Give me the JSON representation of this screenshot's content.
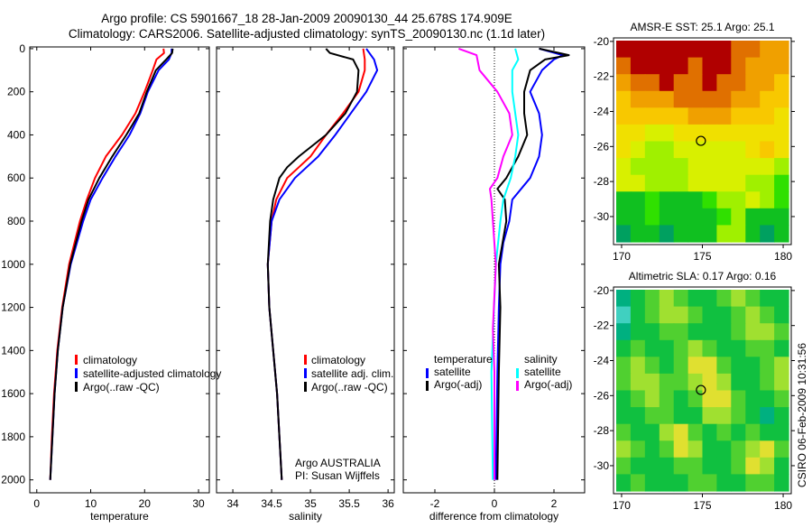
{
  "title_line1": "Argo profile: CS 5901667_18 28-Jan-2009 20090130_44 25.678S 174.909E",
  "title_line2": "Climatology: CARS2006. Satellite-adjusted climatology: synTS_20090130.nc (1.1d later)",
  "side_stamp": "CSIRO 06-Feb-2009 10:31:56",
  "colors": {
    "red": "#ff0000",
    "blue": "#0000ff",
    "black": "#000000",
    "cyan": "#00ffff",
    "magenta": "#ff00ff"
  },
  "chart_data": {
    "type": "line",
    "depth_ticks": [
      0,
      200,
      400,
      600,
      800,
      1000,
      1200,
      1400,
      1600,
      1800,
      2000
    ],
    "ylim": [
      -8,
      2060
    ],
    "panels": [
      {
        "xlabel": "temperature",
        "xlim": [
          -1.3,
          32
        ],
        "xticks": [
          0,
          10,
          20,
          30
        ],
        "legend": [
          "climatology",
          "satellite-adjusted climatology",
          "Argo(..raw -QC)"
        ],
        "series": [
          {
            "name": "climatology",
            "color": "#ff0000",
            "depth": [
              0,
              20,
              50,
              100,
              200,
              300,
              400,
              500,
              600,
              700,
              800,
              1000,
              1200,
              1400,
              1600,
              1800,
              2000
            ],
            "values": [
              23.5,
              23.6,
              22.2,
              21.5,
              20,
              18.3,
              15.8,
              12.8,
              10.8,
              9.3,
              8,
              6,
              4.7,
              3.8,
              3.2,
              2.8,
              2.5
            ]
          },
          {
            "name": "satellite-adjusted climatology",
            "color": "#0000ff",
            "depth": [
              0,
              20,
              50,
              100,
              200,
              300,
              400,
              500,
              600,
              700,
              800,
              1000,
              1200,
              1400,
              1600,
              1800,
              2000
            ],
            "values": [
              25,
              25,
              24.5,
              22.6,
              20.6,
              19.2,
              17.2,
              14.6,
              12.2,
              10,
              8.6,
              6.3,
              4.8,
              3.9,
              3.3,
              2.9,
              2.5
            ]
          },
          {
            "name": "Argo(..raw -QC)",
            "color": "#000000",
            "depth": [
              0,
              20,
              50,
              100,
              200,
              300,
              400,
              500,
              600,
              700,
              800,
              1000,
              1200,
              1400,
              1600,
              1800,
              2000
            ],
            "values": [
              25.2,
              25.1,
              24,
              22.1,
              20.4,
              19,
              16.6,
              14,
              11.6,
              9.6,
              8.3,
              6.2,
              4.8,
              3.9,
              3.3,
              2.9,
              2.5
            ]
          }
        ]
      },
      {
        "xlabel": "salinity",
        "xlim": [
          33.79,
          36.08
        ],
        "xticks": [
          34,
          34.5,
          35,
          35.5,
          36
        ],
        "legend": [
          "climatology",
          "satellite adj. clim.",
          "Argo(..raw -QC)"
        ],
        "annotation": [
          "Argo AUSTRALIA",
          "PI: Susan Wijffels"
        ],
        "series": [
          {
            "name": "climatology",
            "color": "#ff0000",
            "depth": [
              0,
              50,
              100,
              200,
              300,
              400,
              500,
              550,
              600,
              700,
              800,
              1000,
              1200,
              1400,
              1600,
              1800,
              2000
            ],
            "values": [
              35.68,
              35.7,
              35.7,
              35.62,
              35.42,
              35.2,
              35.0,
              34.85,
              34.7,
              34.56,
              34.5,
              34.45,
              34.47,
              34.52,
              34.57,
              34.6,
              34.63
            ]
          },
          {
            "name": "satellite adj. clim.",
            "color": "#0000ff",
            "depth": [
              0,
              50,
              100,
              200,
              300,
              400,
              500,
              550,
              600,
              700,
              800,
              1000,
              1200,
              1400,
              1600,
              1800,
              2000
            ],
            "values": [
              35.72,
              35.82,
              35.86,
              35.72,
              35.52,
              35.32,
              35.1,
              34.95,
              34.8,
              34.6,
              34.5,
              34.45,
              34.47,
              34.52,
              34.57,
              34.6,
              34.63
            ]
          },
          {
            "name": "Argo(..raw -QC)",
            "color": "#000000",
            "depth": [
              0,
              20,
              50,
              100,
              200,
              300,
              400,
              500,
              550,
              600,
              700,
              800,
              1000,
              1200,
              1400,
              1600,
              1800,
              2000
            ],
            "values": [
              35.2,
              35.25,
              35.55,
              35.62,
              35.6,
              35.45,
              35.2,
              34.85,
              34.7,
              34.6,
              34.52,
              34.48,
              34.45,
              34.47,
              34.52,
              34.57,
              34.6,
              34.63
            ]
          }
        ]
      },
      {
        "xlabel": "difference from climatology",
        "xlim": [
          -3.06,
          3.03
        ],
        "xticks": [
          -2,
          0,
          2
        ],
        "zero_line": true,
        "legend_temperature_title": "temperature",
        "legend_salinity_title": "salinity",
        "legend": [
          "satellite",
          "Argo(-adj)",
          "satellite",
          "Argo(-adj)"
        ],
        "series": [
          {
            "name": "temperature satellite",
            "color": "#0000ff",
            "depth": [
              0,
              30,
              50,
              100,
              200,
              300,
              400,
              500,
              600,
              700,
              800,
              900,
              1000,
              1200,
              1500,
              2000
            ],
            "values": [
              1.5,
              2.3,
              2.0,
              1.6,
              1.2,
              1.5,
              1.6,
              1.5,
              1.2,
              0.6,
              0.5,
              0.3,
              0.2,
              0.15,
              0.1,
              0.05
            ]
          },
          {
            "name": "temperature Argo(-adj)",
            "color": "#000000",
            "depth": [
              0,
              30,
              50,
              100,
              200,
              300,
              400,
              500,
              600,
              650,
              700,
              800,
              1000,
              1200,
              1500,
              2000
            ],
            "values": [
              1.5,
              2.5,
              1.7,
              1.2,
              1.0,
              1.0,
              1.1,
              0.8,
              0.4,
              0.1,
              0.35,
              0.4,
              0.15,
              0.2,
              0.15,
              0.1
            ]
          },
          {
            "name": "salinity satellite",
            "color": "#00ffff",
            "depth": [
              0,
              50,
              100,
              200,
              300,
              400,
              500,
              600,
              700,
              800,
              1000,
              1500,
              2000
            ],
            "values": [
              0.7,
              0.8,
              0.6,
              0.6,
              0.7,
              0.8,
              0.7,
              0.55,
              0.3,
              0.2,
              0.05,
              -0.1,
              -0.05
            ]
          },
          {
            "name": "salinity Argo(-adj)",
            "color": "#ff00ff",
            "depth": [
              0,
              30,
              100,
              200,
              300,
              400,
              500,
              600,
              650,
              700,
              800,
              1000,
              1300,
              1500,
              2000
            ],
            "values": [
              -1.2,
              -0.6,
              -0.5,
              0.1,
              0.5,
              0.6,
              0.3,
              0.1,
              -0.15,
              -0.1,
              -0.05,
              0.05,
              -0.05,
              0,
              0
            ]
          }
        ]
      }
    ],
    "maps": [
      {
        "type": "heatmap",
        "title": "AMSR-E SST: 25.1 Argo: 25.1",
        "lon_range": [
          169.5,
          180.5
        ],
        "lat_range": [
          -31.6,
          -19.8
        ],
        "xticks": [
          170,
          175,
          180
        ],
        "yticks": [
          -20,
          -22,
          -24,
          -26,
          -28,
          -30
        ],
        "argo_position": [
          174.909,
          -25.678
        ],
        "palette": [
          "#00a060",
          "#10c020",
          "#30e000",
          "#a0f000",
          "#d8f000",
          "#f0e000",
          "#f8c800",
          "#f0a000",
          "#e07000",
          "#b00000"
        ],
        "grid": [
          [
            9,
            9,
            9,
            9,
            9,
            9,
            9,
            9,
            8,
            8,
            7,
            7
          ],
          [
            8,
            9,
            9,
            9,
            9,
            8,
            9,
            9,
            8,
            7,
            7,
            7
          ],
          [
            7,
            8,
            8,
            9,
            8,
            8,
            9,
            8,
            8,
            7,
            7,
            6
          ],
          [
            6,
            7,
            7,
            7,
            8,
            8,
            8,
            8,
            7,
            7,
            6,
            6
          ],
          [
            6,
            6,
            6,
            6,
            6,
            7,
            7,
            7,
            6,
            6,
            6,
            5
          ],
          [
            5,
            5,
            4,
            4,
            5,
            5,
            5,
            5,
            5,
            5,
            5,
            5
          ],
          [
            5,
            4,
            3,
            3,
            4,
            4,
            4,
            4,
            4,
            5,
            6,
            5
          ],
          [
            4,
            3,
            3,
            3,
            3,
            4,
            4,
            4,
            4,
            4,
            4,
            3
          ],
          [
            4,
            4,
            3,
            3,
            3,
            4,
            4,
            4,
            4,
            3,
            3,
            2
          ],
          [
            1,
            1,
            2,
            1,
            1,
            1,
            2,
            3,
            3,
            4,
            3,
            2
          ],
          [
            1,
            1,
            2,
            1,
            1,
            1,
            1,
            2,
            3,
            1,
            1,
            1
          ],
          [
            0,
            1,
            1,
            0,
            1,
            1,
            1,
            3,
            3,
            1,
            0,
            1
          ]
        ]
      },
      {
        "type": "heatmap",
        "title": "Altimetric SLA: 0.17 Argo: 0.16",
        "lon_range": [
          169.5,
          180.5
        ],
        "lat_range": [
          -31.6,
          -19.8
        ],
        "xticks": [
          170,
          175,
          180
        ],
        "yticks": [
          -20,
          -22,
          -24,
          -26,
          -28,
          -30
        ],
        "argo_position": [
          174.909,
          -25.678
        ],
        "palette": [
          "#40d0c0",
          "#00b080",
          "#10c040",
          "#50d030",
          "#a0e030",
          "#e0e030",
          "#f0c030"
        ],
        "grid": [
          [
            1,
            2,
            3,
            4,
            3,
            2,
            2,
            3,
            4,
            3,
            2,
            2
          ],
          [
            0,
            2,
            3,
            4,
            4,
            3,
            2,
            2,
            3,
            4,
            3,
            2
          ],
          [
            1,
            2,
            2,
            3,
            3,
            2,
            2,
            2,
            3,
            4,
            4,
            3
          ],
          [
            2,
            3,
            2,
            2,
            3,
            4,
            3,
            2,
            2,
            3,
            3,
            2
          ],
          [
            3,
            4,
            3,
            2,
            3,
            5,
            5,
            3,
            2,
            2,
            3,
            4
          ],
          [
            3,
            4,
            4,
            3,
            3,
            4,
            5,
            4,
            2,
            2,
            3,
            4
          ],
          [
            2,
            3,
            4,
            3,
            2,
            3,
            5,
            5,
            3,
            2,
            2,
            3
          ],
          [
            2,
            2,
            3,
            3,
            2,
            2,
            4,
            4,
            3,
            2,
            1,
            2
          ],
          [
            3,
            2,
            2,
            4,
            5,
            3,
            2,
            3,
            2,
            3,
            2,
            2
          ],
          [
            4,
            3,
            2,
            3,
            5,
            4,
            2,
            2,
            3,
            4,
            5,
            3
          ],
          [
            3,
            2,
            2,
            2,
            3,
            3,
            2,
            2,
            3,
            5,
            4,
            2
          ],
          [
            2,
            3,
            2,
            2,
            2,
            3,
            3,
            2,
            2,
            3,
            3,
            2
          ]
        ]
      }
    ]
  }
}
